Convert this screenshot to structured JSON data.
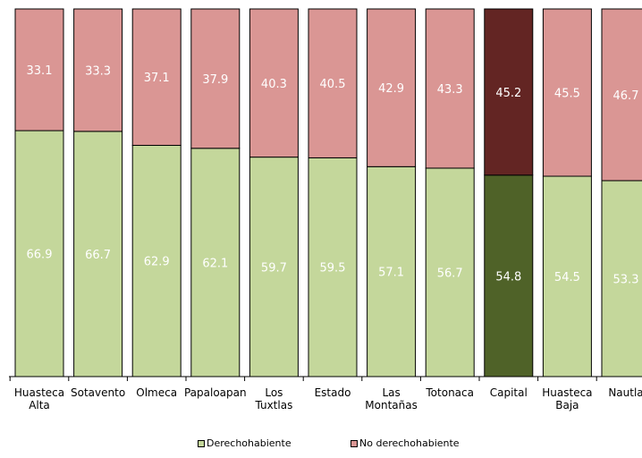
{
  "chart_data": {
    "type": "bar",
    "stacked": true,
    "categories": [
      "Huasteca Alta",
      "Sotavento",
      "Olmeca",
      "Papaloapan",
      "Los Tuxtlas",
      "Estado",
      "Las Montañas",
      "Totonaca",
      "Capital",
      "Huasteca Baja",
      "Nautla"
    ],
    "category_lines": [
      [
        "Huasteca",
        "Alta"
      ],
      [
        "Sotavento"
      ],
      [
        "Olmeca"
      ],
      [
        "Papaloapan"
      ],
      [
        "Los",
        "Tuxtlas"
      ],
      [
        "Estado"
      ],
      [
        "Las",
        "Montañas"
      ],
      [
        "Totonaca"
      ],
      [
        "Capital"
      ],
      [
        "Huasteca",
        "Baja"
      ],
      [
        "Nautla"
      ]
    ],
    "series": [
      {
        "name": "Derechohabiente",
        "values": [
          66.9,
          66.7,
          62.9,
          62.1,
          59.7,
          59.5,
          57.1,
          56.7,
          54.8,
          54.5,
          53.3
        ],
        "labels": [
          "66.9",
          "66.7",
          "62.9",
          "62.1",
          "59.7",
          "59.5",
          "57.1",
          "56.7",
          "54.8",
          "54.5",
          "53.3"
        ],
        "color": "#c4d79b",
        "highlight_color": "#4f6228"
      },
      {
        "name": "No derechohabiente",
        "values": [
          33.1,
          33.3,
          37.1,
          37.9,
          40.3,
          40.5,
          42.9,
          43.3,
          45.2,
          45.5,
          46.7
        ],
        "labels": [
          "33.1",
          "33.3",
          "37.1",
          "37.9",
          "40.3",
          "40.5",
          "42.9",
          "43.3",
          "45.2",
          "45.5",
          "46.7"
        ],
        "color": "#da9694",
        "highlight_color": "#632523"
      }
    ],
    "highlight_category": "Capital",
    "ylim": [
      0,
      100
    ],
    "grid": false,
    "legend_position": "bottom",
    "title": "",
    "xlabel": "",
    "ylabel": ""
  }
}
